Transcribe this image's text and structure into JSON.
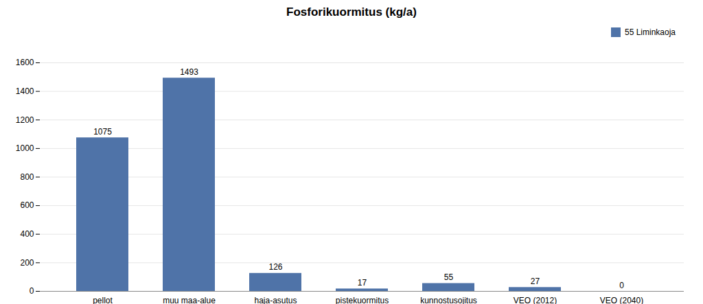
{
  "chart_data": {
    "type": "bar",
    "title": "Fosforikuormitus (kg/a)",
    "categories": [
      "pellot",
      "muu maa-alue",
      "haja-asutus",
      "pistekuormitus",
      "kunnostusojitus",
      "VEO (2012)",
      "VEO (2040)"
    ],
    "series": [
      {
        "name": "55 Liminkaoja",
        "color": "#4f73a8",
        "values": [
          1075,
          1493,
          126,
          17,
          55,
          27,
          0
        ]
      }
    ],
    "ylim": [
      0,
      1600
    ],
    "yticks": [
      0,
      200,
      400,
      600,
      800,
      1000,
      1200,
      1400,
      1600
    ],
    "grid": true,
    "legend": "upper right",
    "data_labels": true
  }
}
